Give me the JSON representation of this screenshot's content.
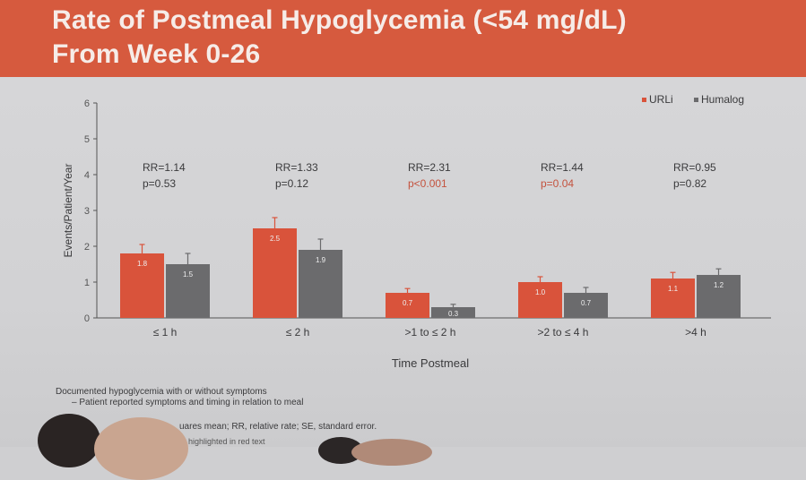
{
  "header": {
    "title_line1": "Rate of Postmeal Hypoglycemia (<54 mg/dL)",
    "title_line2": "From Week 0-26"
  },
  "colors": {
    "header_bg": "#d65a3e",
    "urli": "#d9533b",
    "humalog": "#6b6b6d"
  },
  "chart_data": {
    "type": "bar",
    "categories": [
      "≤ 1 h",
      "≤ 2 h",
      ">1 to ≤ 2 h",
      ">2 to ≤ 4 h",
      ">4 h"
    ],
    "series": [
      {
        "name": "URLi",
        "values": [
          1.8,
          2.5,
          0.7,
          1.0,
          1.1
        ],
        "error": [
          0.25,
          0.3,
          0.12,
          0.15,
          0.17
        ],
        "value_labels": [
          "1.8",
          "2.5",
          "0.7",
          "1.0",
          "1.1"
        ]
      },
      {
        "name": "Humalog",
        "values": [
          1.5,
          1.9,
          0.3,
          0.7,
          1.2
        ],
        "error": [
          0.3,
          0.3,
          0.08,
          0.15,
          0.17
        ],
        "value_labels": [
          "1.5",
          "1.9",
          "0.3",
          "0.7",
          "1.2"
        ]
      }
    ],
    "annotations": [
      {
        "rr": "RR=1.14",
        "p": "p=0.53"
      },
      {
        "rr": "RR=1.33",
        "p": "p=0.12"
      },
      {
        "rr": "RR=2.31",
        "p": "p<0.001"
      },
      {
        "rr": "RR=1.44",
        "p": "p=0.04"
      },
      {
        "rr": "RR=0.95",
        "p": "p=0.82"
      }
    ],
    "xlabel": "Time Postmeal",
    "ylabel": "Events/Patient/Year",
    "ylim": [
      0,
      6
    ],
    "yticks": [
      "0",
      "1",
      "2",
      "3",
      "4",
      "5",
      "6"
    ],
    "legend": "top-right"
  },
  "notes": {
    "line1": "Documented hypoglycemia with or without symptoms",
    "line2": "–   Patient reported symptoms and timing in relation to meal",
    "line3": "uares mean; RR, relative rate; SE, standard error.",
    "line4": "highlighted in red text"
  }
}
